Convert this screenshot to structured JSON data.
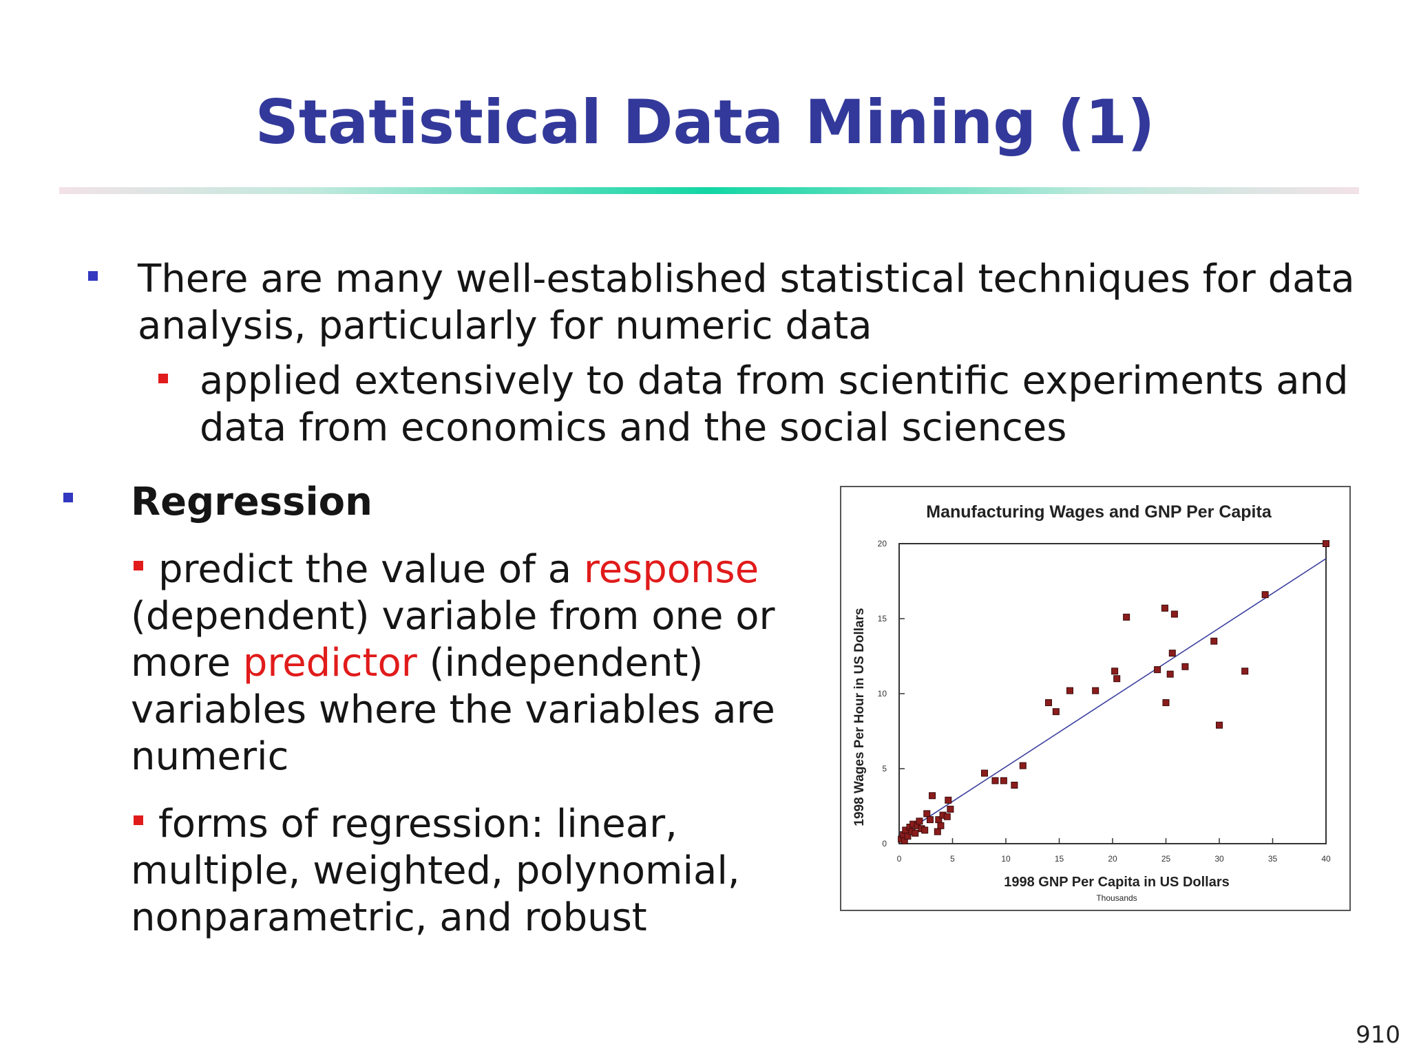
{
  "slide": {
    "title": "Statistical Data Mining (1)",
    "page_number": "910"
  },
  "bullets": {
    "b1_line1": "There are many well-established statistical techniques for data",
    "b1_line2": "analysis, particularly for numeric data",
    "b1_sub_line1": "applied extensively to data from scientific experiments and",
    "b1_sub_line2": "data from economics and the social sciences",
    "b2_heading": "Regression",
    "b2_sub1_l1_a": "predict the value of a ",
    "b2_sub1_l1_b": "response",
    "b2_sub1_l2": "(dependent) variable from one or",
    "b2_sub1_l3_a": "more ",
    "b2_sub1_l3_b": "predictor",
    "b2_sub1_l3_c": " (independent)",
    "b2_sub1_l4": "variables where the variables are",
    "b2_sub1_l5": "numeric",
    "b2_sub2_l1": "forms of regression: linear,",
    "b2_sub2_l2": "multiple, weighted, polynomial,",
    "b2_sub2_l3": "nonparametric, and robust"
  },
  "chart_data": {
    "type": "scatter",
    "title": "Manufacturing Wages and GNP Per Capita",
    "xlabel": "1998 GNP Per Capita in US Dollars",
    "xlabel_sub": "Thousands",
    "ylabel": "1998 Wages Per Hour in US Dollars",
    "xlim": [
      0,
      40
    ],
    "ylim": [
      0,
      20
    ],
    "xticks": [
      0,
      5,
      10,
      15,
      20,
      25,
      30,
      35,
      40
    ],
    "yticks": [
      0,
      5,
      10,
      15,
      20
    ],
    "grid": false,
    "point_color": "#8b1c1c",
    "line_color": "#3a3f9e",
    "trendline": {
      "x0": 0,
      "y0": 0.5,
      "x1": 40,
      "y1": 19.0
    },
    "points": [
      {
        "x": 0.2,
        "y": 0.3
      },
      {
        "x": 0.4,
        "y": 0.6
      },
      {
        "x": 0.5,
        "y": 0.2
      },
      {
        "x": 0.6,
        "y": 0.9
      },
      {
        "x": 0.8,
        "y": 0.5
      },
      {
        "x": 1.0,
        "y": 1.1
      },
      {
        "x": 1.2,
        "y": 0.8
      },
      {
        "x": 1.3,
        "y": 1.3
      },
      {
        "x": 1.5,
        "y": 0.7
      },
      {
        "x": 1.7,
        "y": 1.2
      },
      {
        "x": 1.9,
        "y": 1.5
      },
      {
        "x": 2.1,
        "y": 1.0
      },
      {
        "x": 2.4,
        "y": 0.9
      },
      {
        "x": 2.6,
        "y": 2.0
      },
      {
        "x": 2.9,
        "y": 1.6
      },
      {
        "x": 3.1,
        "y": 3.2
      },
      {
        "x": 3.6,
        "y": 0.8
      },
      {
        "x": 3.7,
        "y": 1.6
      },
      {
        "x": 3.9,
        "y": 1.2
      },
      {
        "x": 4.1,
        "y": 1.9
      },
      {
        "x": 4.5,
        "y": 1.8
      },
      {
        "x": 4.6,
        "y": 2.9
      },
      {
        "x": 4.8,
        "y": 2.3
      },
      {
        "x": 8.0,
        "y": 4.7
      },
      {
        "x": 9.0,
        "y": 4.2
      },
      {
        "x": 9.8,
        "y": 4.2
      },
      {
        "x": 10.8,
        "y": 3.9
      },
      {
        "x": 11.6,
        "y": 5.2
      },
      {
        "x": 14.0,
        "y": 9.4
      },
      {
        "x": 14.7,
        "y": 8.8
      },
      {
        "x": 16.0,
        "y": 10.2
      },
      {
        "x": 18.4,
        "y": 10.2
      },
      {
        "x": 20.2,
        "y": 11.5
      },
      {
        "x": 20.4,
        "y": 11.0
      },
      {
        "x": 21.3,
        "y": 15.1
      },
      {
        "x": 24.2,
        "y": 11.6
      },
      {
        "x": 24.9,
        "y": 15.7
      },
      {
        "x": 25.0,
        "y": 9.4
      },
      {
        "x": 25.4,
        "y": 11.3
      },
      {
        "x": 25.6,
        "y": 12.7
      },
      {
        "x": 25.8,
        "y": 15.3
      },
      {
        "x": 26.8,
        "y": 11.8
      },
      {
        "x": 29.5,
        "y": 13.5
      },
      {
        "x": 30.0,
        "y": 7.9
      },
      {
        "x": 32.4,
        "y": 11.5
      },
      {
        "x": 34.3,
        "y": 16.6
      },
      {
        "x": 40.0,
        "y": 20.0
      }
    ]
  }
}
